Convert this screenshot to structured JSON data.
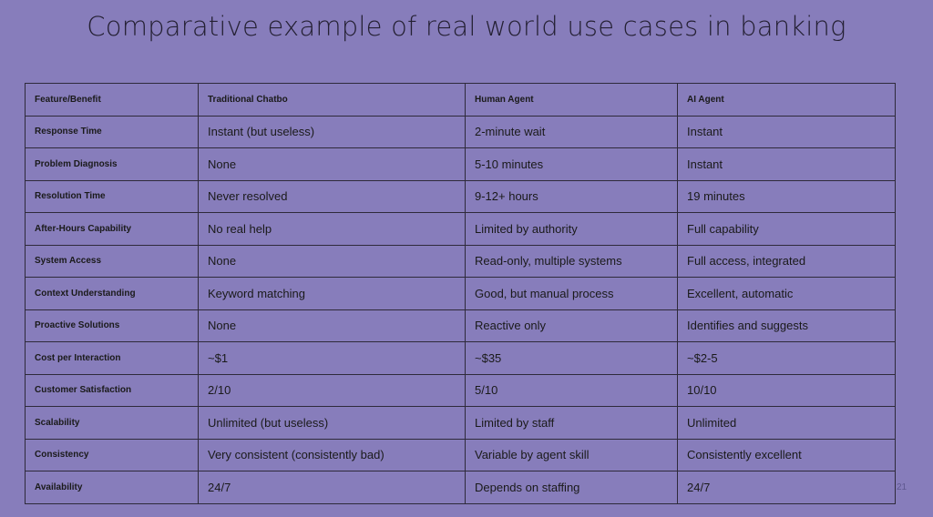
{
  "title": "Comparative example of real world use cases in banking",
  "table": {
    "headers": [
      "Feature/Benefit",
      "Traditional Chatbo",
      "Human Agent",
      "AI Agent"
    ],
    "rows": [
      [
        "Response Time",
        "Instant (but useless)",
        "2-minute wait",
        "Instant"
      ],
      [
        "Problem Diagnosis",
        "None",
        "5-10 minutes",
        "Instant"
      ],
      [
        "Resolution Time",
        "Never resolved",
        "9-12+ hours",
        "19 minutes"
      ],
      [
        "After-Hours Capability",
        "No real help",
        "Limited by authority",
        "Full capability"
      ],
      [
        "System Access",
        "None",
        "Read-only, multiple systems",
        "Full access, integrated"
      ],
      [
        "Context Understanding",
        "Keyword matching",
        "Good, but manual process",
        "Excellent, automatic"
      ],
      [
        "Proactive Solutions",
        "None",
        "Reactive only",
        "Identifies and suggests"
      ],
      [
        "Cost per Interaction",
        "~$1",
        "~$35",
        "~$2-5"
      ],
      [
        "Customer Satisfaction",
        "2/10",
        "5/10",
        "10/10"
      ],
      [
        "Scalability",
        "Unlimited (but useless)",
        "Limited by staff",
        "Unlimited"
      ],
      [
        "Consistency",
        "Very consistent (consistently bad)",
        "Variable by agent skill",
        "Consistently excellent"
      ],
      [
        "Availability",
        "24/7",
        "Depends on staffing",
        "24/7"
      ]
    ]
  },
  "page_number": "21",
  "colors": {
    "background": "#877dbb",
    "border": "#2e2a3a"
  }
}
